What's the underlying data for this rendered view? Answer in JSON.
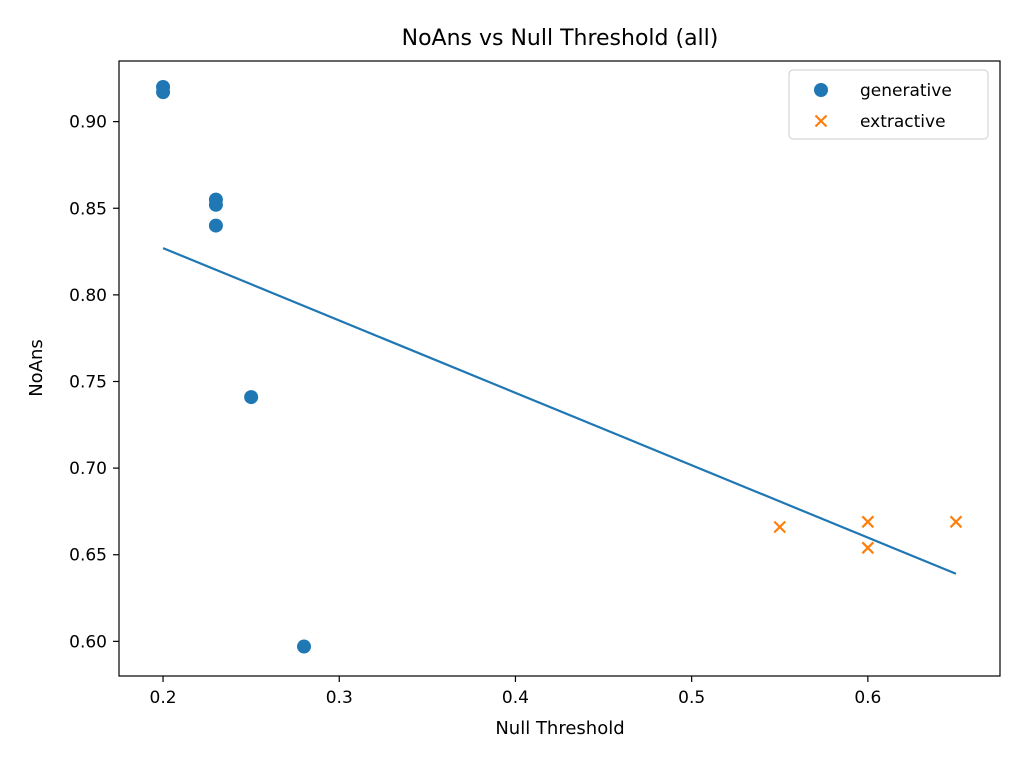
{
  "chart_data": {
    "type": "scatter",
    "title": "NoAns vs Null Threshold (all)",
    "xlabel": "Null Threshold",
    "ylabel": "NoAns",
    "xlim": [
      0.175,
      0.675
    ],
    "ylim": [
      0.58,
      0.935
    ],
    "x_ticks": [
      0.2,
      0.3,
      0.4,
      0.5,
      0.6
    ],
    "y_ticks": [
      0.6,
      0.65,
      0.7,
      0.75,
      0.8,
      0.85,
      0.9
    ],
    "grid": false,
    "legend_position": "top-right",
    "series": [
      {
        "name": "generative",
        "marker": "circle",
        "color": "#1f77b4",
        "points": [
          {
            "x": 0.2,
            "y": 0.92
          },
          {
            "x": 0.2,
            "y": 0.917
          },
          {
            "x": 0.23,
            "y": 0.855
          },
          {
            "x": 0.23,
            "y": 0.852
          },
          {
            "x": 0.23,
            "y": 0.84
          },
          {
            "x": 0.25,
            "y": 0.741
          },
          {
            "x": 0.28,
            "y": 0.597
          }
        ]
      },
      {
        "name": "extractive",
        "marker": "x",
        "color": "#ff7f0e",
        "points": [
          {
            "x": 0.55,
            "y": 0.666
          },
          {
            "x": 0.6,
            "y": 0.669
          },
          {
            "x": 0.6,
            "y": 0.654
          },
          {
            "x": 0.65,
            "y": 0.669
          }
        ]
      }
    ],
    "trend_line": {
      "color": "#1f77b4",
      "points": [
        {
          "x": 0.2,
          "y": 0.827
        },
        {
          "x": 0.65,
          "y": 0.639
        }
      ]
    }
  }
}
